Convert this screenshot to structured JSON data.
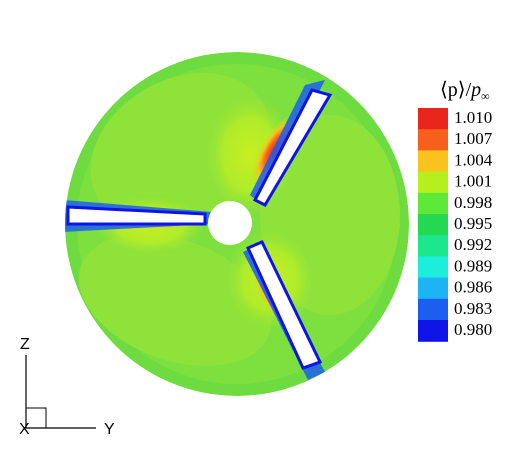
{
  "colorbar": {
    "title_main": "⟨p⟩",
    "title_sep": "/",
    "title_p": "p",
    "title_sub": "∞",
    "levels": [
      {
        "label": "1.010",
        "color": "#e8261c"
      },
      {
        "label": "1.007",
        "color": "#f7601c"
      },
      {
        "label": "1.004",
        "color": "#fac21c"
      },
      {
        "label": "1.001",
        "color": "#b5f01e"
      },
      {
        "label": "0.998",
        "color": "#5ee838"
      },
      {
        "label": "0.995",
        "color": "#22d951"
      },
      {
        "label": "0.992",
        "color": "#1ce78f"
      },
      {
        "label": "0.989",
        "color": "#1ceedb"
      },
      {
        "label": "0.986",
        "color": "#1cb4f3"
      },
      {
        "label": "0.983",
        "color": "#1c5ef0"
      },
      {
        "label": "0.980",
        "color": "#0f14e6"
      }
    ]
  },
  "axes": {
    "z_label": "Z",
    "y_label": "Y",
    "x_label": "X"
  },
  "colors": {
    "base_field": "#7ee03e",
    "light_field": "#96e436",
    "blade_high": "#e8261c",
    "blade_low": "#0f14e6"
  }
}
